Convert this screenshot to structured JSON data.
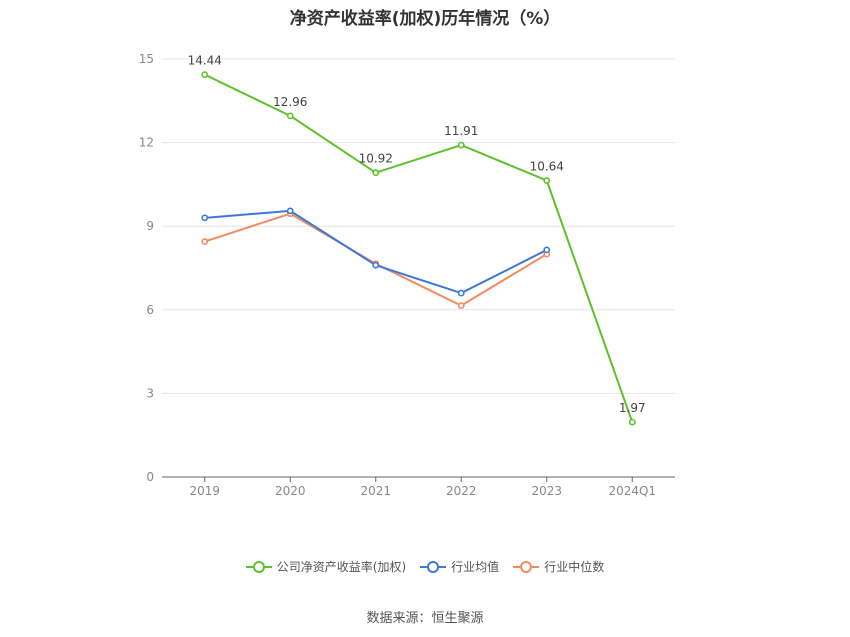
{
  "chart_data": {
    "type": "line",
    "title": "净资产收益率(加权)历年情况（%）",
    "categories": [
      "2019",
      "2020",
      "2021",
      "2022",
      "2023",
      "2024Q1"
    ],
    "ylim": [
      0,
      15
    ],
    "yticks": [
      0,
      3,
      6,
      9,
      12,
      15
    ],
    "grid": true,
    "legend_position": "bottom",
    "series": [
      {
        "name": "公司净资产收益率(加权)",
        "color": "#5ec12c",
        "values": [
          14.44,
          12.96,
          10.92,
          11.91,
          10.64,
          1.97
        ],
        "labels": [
          "14.44",
          "12.96",
          "10.92",
          "11.91",
          "10.64",
          "1.97"
        ]
      },
      {
        "name": "行业均值",
        "color": "#3c78d8",
        "values": [
          9.3,
          9.55,
          7.6,
          6.6,
          8.15,
          null
        ]
      },
      {
        "name": "行业中位数",
        "color": "#f28b5f",
        "values": [
          8.45,
          9.45,
          7.65,
          6.15,
          8.0,
          null
        ]
      }
    ],
    "source": "数据来源：恒生聚源"
  }
}
